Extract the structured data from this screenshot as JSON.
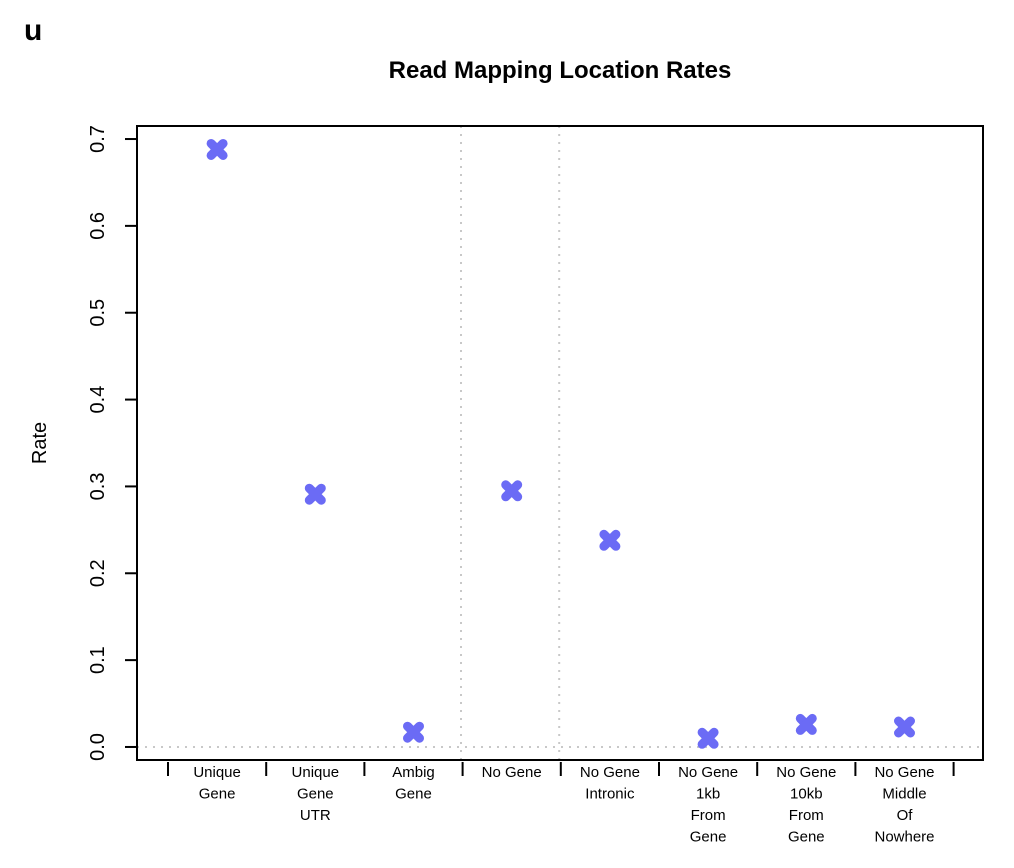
{
  "panel_label": "u",
  "chart_data": {
    "type": "scatter",
    "title": "Read Mapping Location Rates",
    "xlabel": "",
    "ylabel": "Rate",
    "ylim": [
      -0.015,
      0.715
    ],
    "yticks": [
      "0.0",
      "0.1",
      "0.2",
      "0.3",
      "0.4",
      "0.5",
      "0.6",
      "0.7"
    ],
    "categories": [
      [
        "Unique",
        "Gene"
      ],
      [
        "Unique",
        "Gene",
        "UTR"
      ],
      [
        "Ambig",
        "Gene"
      ],
      [
        "No Gene"
      ],
      [
        "No Gene",
        "Intronic"
      ],
      [
        "No Gene",
        "1kb",
        "From",
        "Gene"
      ],
      [
        "No Gene",
        "10kb",
        "From",
        "Gene"
      ],
      [
        "No Gene",
        "Middle",
        "Of",
        "Nowhere"
      ]
    ],
    "values": [
      0.688,
      0.291,
      0.017,
      0.295,
      0.238,
      0.01,
      0.026,
      0.023
    ],
    "marker_color": "#6b6bf5",
    "guide_color": "#c8c8c8",
    "grid": false,
    "reference_line_y": 0,
    "group_separators_after": [
      2,
      3
    ]
  }
}
